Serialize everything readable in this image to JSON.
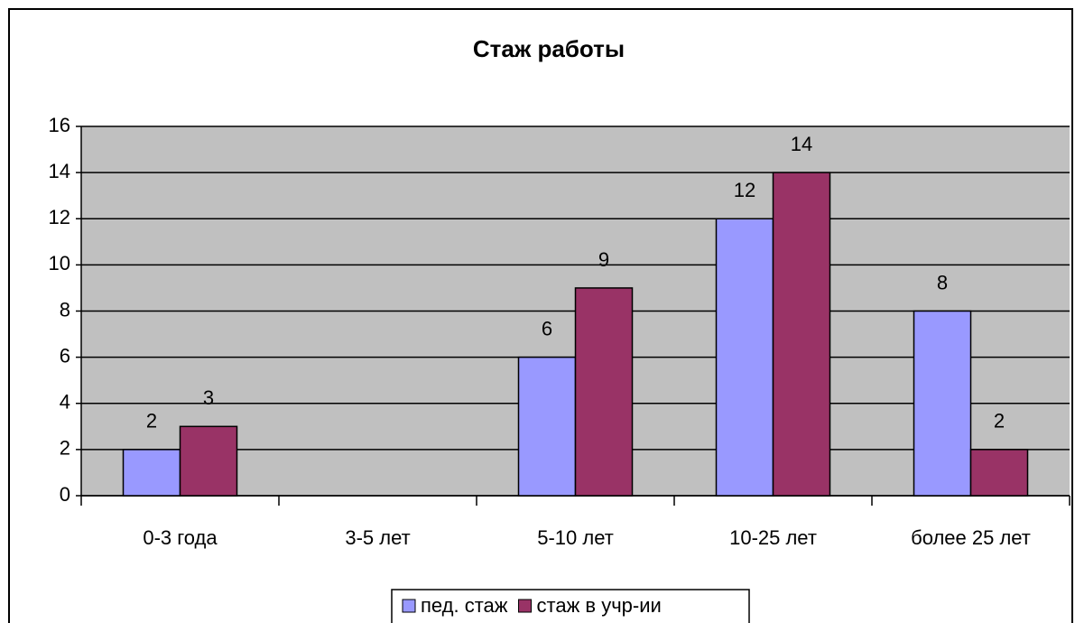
{
  "chart_data": {
    "type": "bar",
    "title": "Стаж работы",
    "categories": [
      "0-3 года",
      "3-5 лет",
      "5-10 лет",
      "10-25 лет",
      "более 25 лет"
    ],
    "series": [
      {
        "name": "пед. стаж",
        "color": "#9999ff",
        "values": [
          2,
          null,
          6,
          12,
          8
        ]
      },
      {
        "name": "стаж в учр-ии",
        "color": "#993366",
        "values": [
          3,
          null,
          9,
          14,
          2
        ]
      }
    ],
    "ylim": [
      0,
      16
    ],
    "yticks": [
      0,
      2,
      4,
      6,
      8,
      10,
      12,
      14,
      16
    ],
    "grid": true,
    "legend": "bottom"
  }
}
